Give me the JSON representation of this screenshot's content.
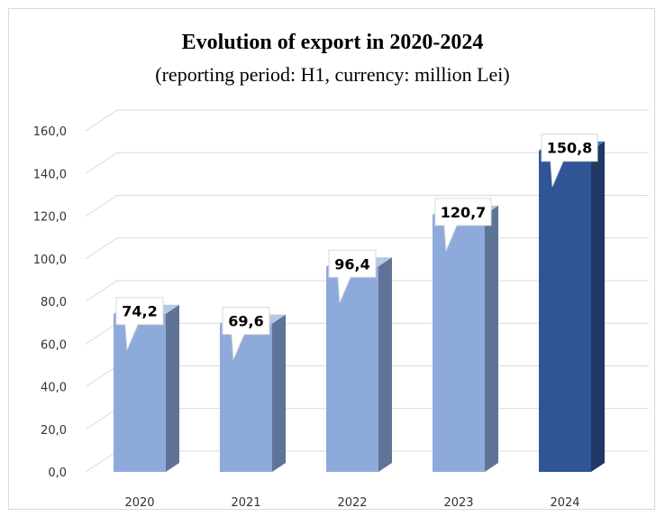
{
  "chart_data": {
    "type": "bar",
    "title": "Evolution of export in 2020-2024",
    "subtitle": "(reporting period: H1, currency: million Lei)",
    "categories": [
      "2020",
      "2021",
      "2022",
      "2023",
      "2024"
    ],
    "values": [
      74.2,
      69.6,
      96.4,
      120.7,
      150.8
    ],
    "value_labels": [
      "74,2",
      "69,6",
      "96,4",
      "120,7",
      "150,8"
    ],
    "y_ticks": [
      "0,0",
      "20,0",
      "40,0",
      "60,0",
      "80,0",
      "100,0",
      "120,0",
      "140,0",
      "160,0"
    ],
    "ylim": [
      0,
      160
    ],
    "grid": true,
    "colors": {
      "bar_front": "#8eaadb",
      "bar_side": "#5f7396",
      "bar_top": "#b4c7e7",
      "highlight_front": "#2f5597",
      "highlight_side": "#1f3864",
      "highlight_top": "#4472c4",
      "grid": "#d9d9d9"
    }
  }
}
